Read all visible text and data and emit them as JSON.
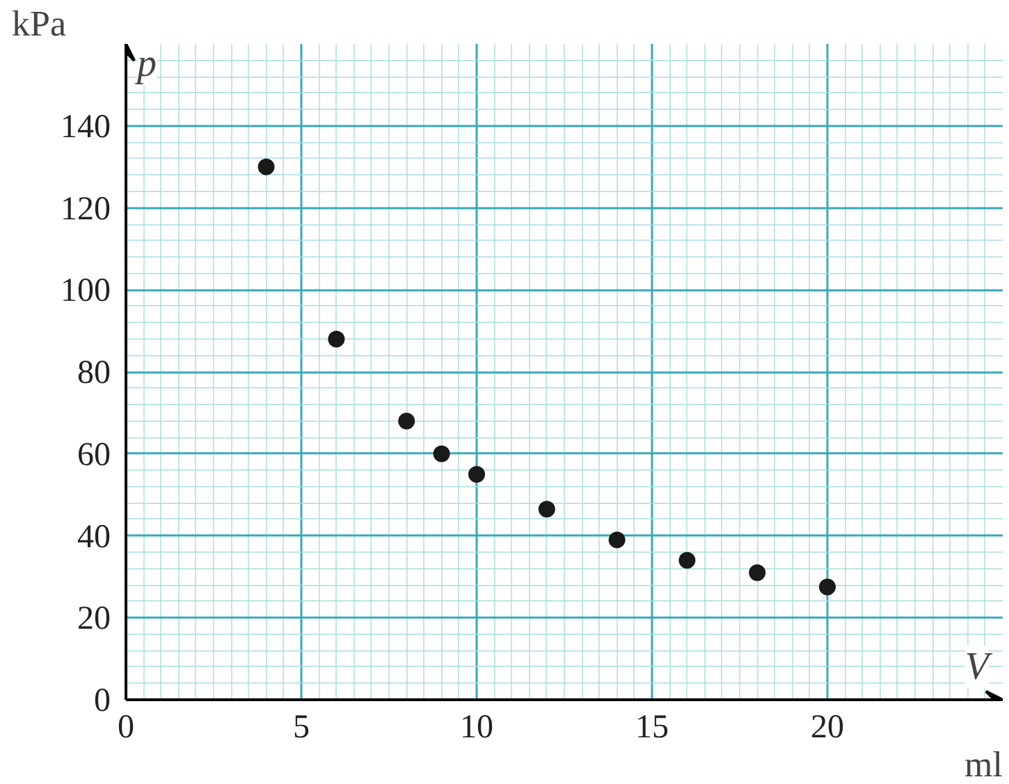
{
  "chart_data": {
    "type": "scatter",
    "xlabel": "V",
    "ylabel": "p",
    "annotations": [
      "ml",
      "kPa"
    ],
    "x": [
      4,
      6,
      8,
      9,
      10,
      12,
      14,
      16,
      18,
      20
    ],
    "series": [
      {
        "color": "#1a1a1a",
        "values": [
          130,
          88,
          68,
          60,
          55,
          46.5,
          39,
          34,
          31,
          27.5
        ]
      }
    ],
    "xlim": [
      0,
      25
    ],
    "ylim": [
      0,
      160
    ],
    "xticks": [
      0,
      5,
      10,
      15,
      20
    ],
    "yticks": [
      0,
      20,
      40,
      60,
      80,
      100,
      120,
      140
    ],
    "grid": true,
    "marker": "circle"
  }
}
